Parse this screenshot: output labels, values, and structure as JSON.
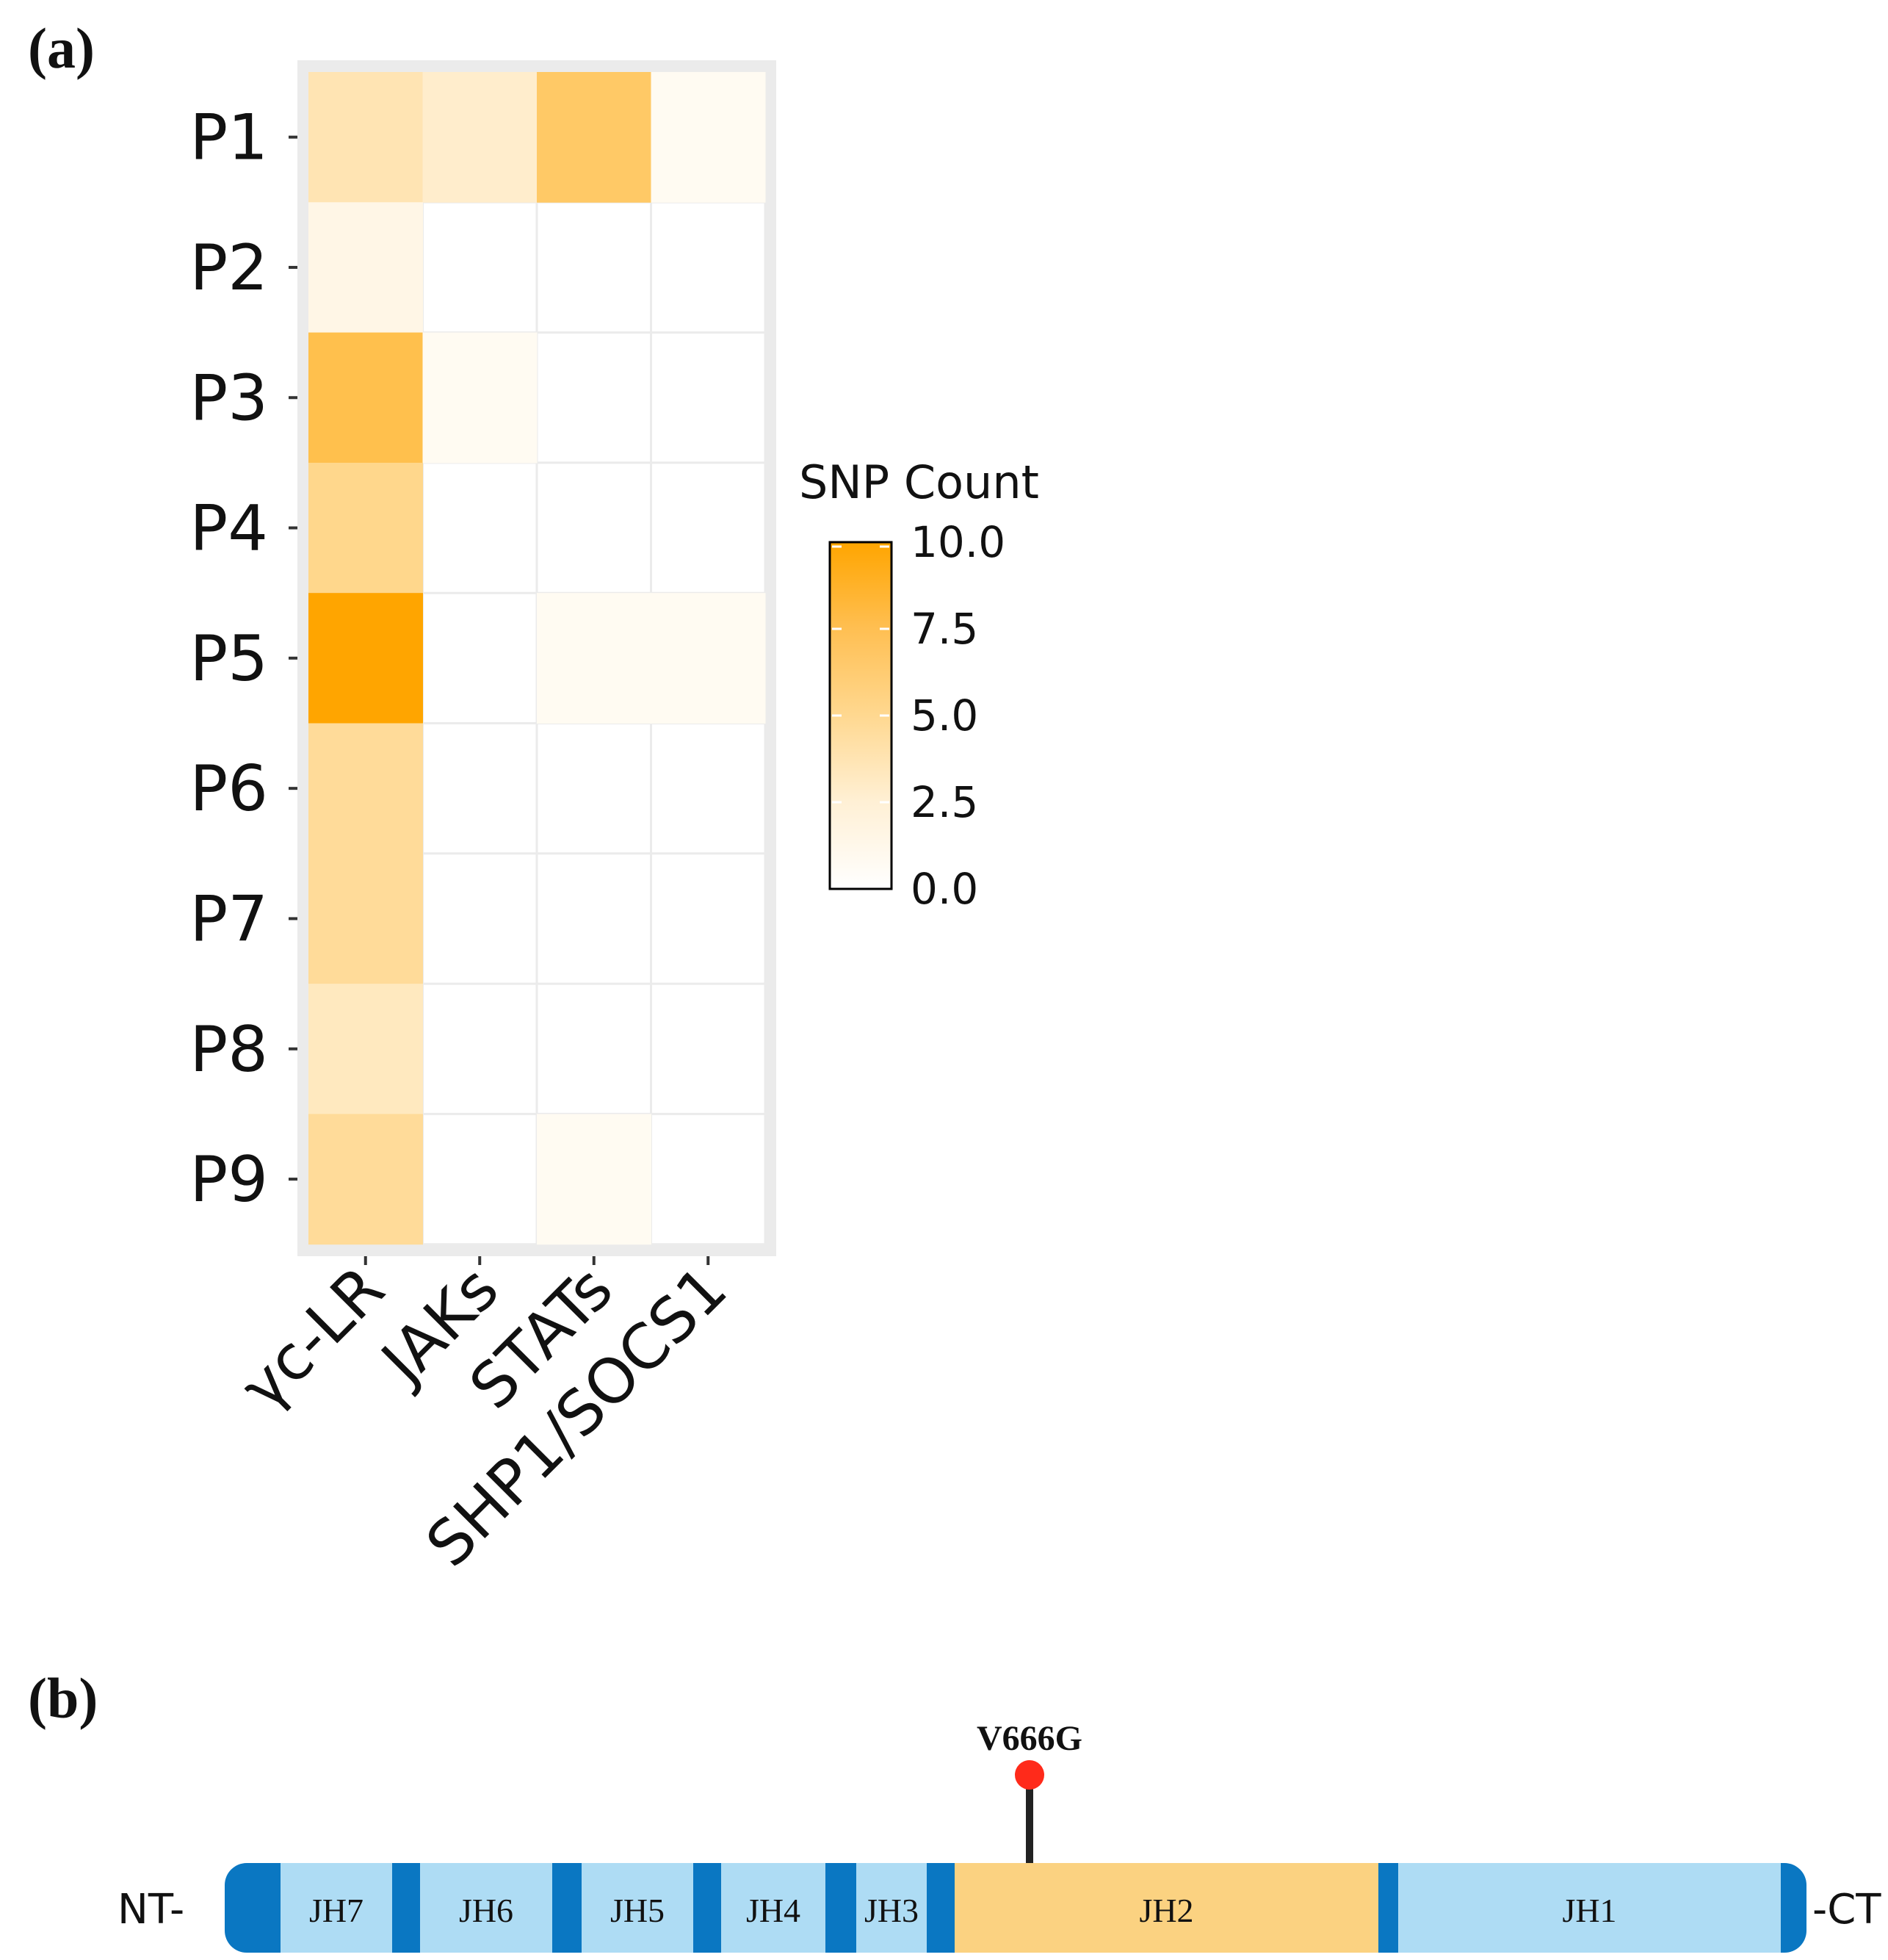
{
  "panels": {
    "a_label": "(a)",
    "b_label": "(b)"
  },
  "chart_data": {
    "type": "heatmap",
    "title": "",
    "xlabel": "",
    "ylabel": "",
    "x_categories": [
      "γc-LR",
      "JAKs",
      "STATs",
      "SHP1/SOCS1"
    ],
    "y_categories": [
      "P1",
      "P2",
      "P3",
      "P4",
      "P5",
      "P6",
      "P7",
      "P8",
      "P9"
    ],
    "values": [
      [
        3,
        2,
        6,
        0.5
      ],
      [
        1,
        0,
        0,
        0
      ],
      [
        7,
        0.5,
        0,
        0
      ],
      [
        4.5,
        0,
        0,
        0
      ],
      [
        10,
        0,
        0.5,
        0.5
      ],
      [
        4,
        0,
        0,
        0
      ],
      [
        4,
        0,
        0,
        0
      ],
      [
        2.5,
        0,
        0,
        0
      ],
      [
        4,
        0,
        0.5,
        0
      ]
    ],
    "color_scale": {
      "low": "#ffffff",
      "high": "#ffa500",
      "min": 0,
      "max": 10
    },
    "legend": {
      "title": "SNP Count",
      "ticks": [
        10.0,
        7.5,
        5.0,
        2.5,
        0.0
      ],
      "tick_labels": [
        "10.0",
        "7.5",
        "5.0",
        "2.5",
        "0.0"
      ],
      "placement": "right"
    },
    "panel_background": "#ebebeb"
  },
  "domain_map": {
    "nt_label": "NT-",
    "ct_label": "-CT",
    "mutation": {
      "label": "V666G",
      "color": "#ff2a1a",
      "domain": "JH2"
    },
    "colors": {
      "light": "#aedcf4",
      "dark": "#0a77c2",
      "jh2": "#fbd281",
      "stick": "#222222"
    },
    "domains": [
      {
        "label": "JH7",
        "type": "light"
      },
      {
        "label": "JH6",
        "type": "light"
      },
      {
        "label": "JH5",
        "type": "light"
      },
      {
        "label": "JH4",
        "type": "light"
      },
      {
        "label": "JH3",
        "type": "light"
      },
      {
        "label": "JH2",
        "type": "jh2"
      },
      {
        "label": "JH1",
        "type": "light"
      }
    ]
  }
}
